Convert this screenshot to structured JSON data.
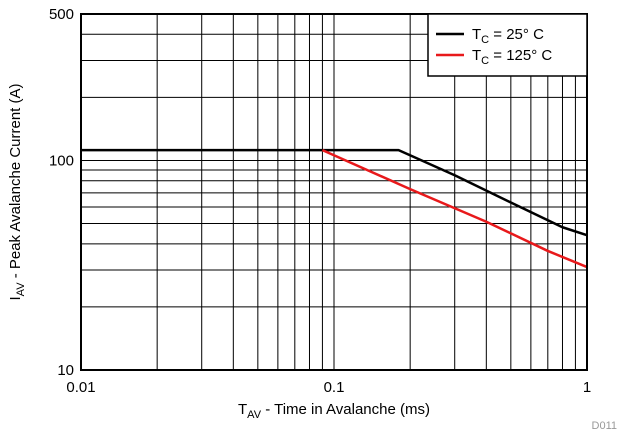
{
  "chart_data": {
    "type": "line",
    "x_scale": "log",
    "y_scale": "log",
    "xlim": [
      0.01,
      1
    ],
    "ylim": [
      10,
      500
    ],
    "grid": true,
    "x_ticks": [
      "0.01",
      "0.1",
      "1"
    ],
    "y_ticks": [
      "10",
      "100",
      "500"
    ],
    "xlabel_main": "T",
    "xlabel_sub": "AV",
    "xlabel_rest": " - Time in Avalanche (ms)",
    "ylabel_main": "I",
    "ylabel_sub": "AV",
    "ylabel_rest": " - Peak Avalanche Current (A)",
    "legend_position": "top-right",
    "series": [
      {
        "name_main": "T",
        "name_sub": "C",
        "name_rest": " = 25° C",
        "color": "#000000",
        "x": [
          0.01,
          0.18,
          0.3,
          0.5,
          0.8,
          1.0
        ],
        "y": [
          112,
          112,
          85,
          63,
          48,
          44
        ]
      },
      {
        "name_main": "T",
        "name_sub": "C",
        "name_rest": " = 125° C",
        "color": "#e8191b",
        "x": [
          0.09,
          0.2,
          0.4,
          0.7,
          1.0
        ],
        "y": [
          112,
          73,
          51,
          37,
          31
        ]
      }
    ]
  },
  "figure_id": "D011"
}
